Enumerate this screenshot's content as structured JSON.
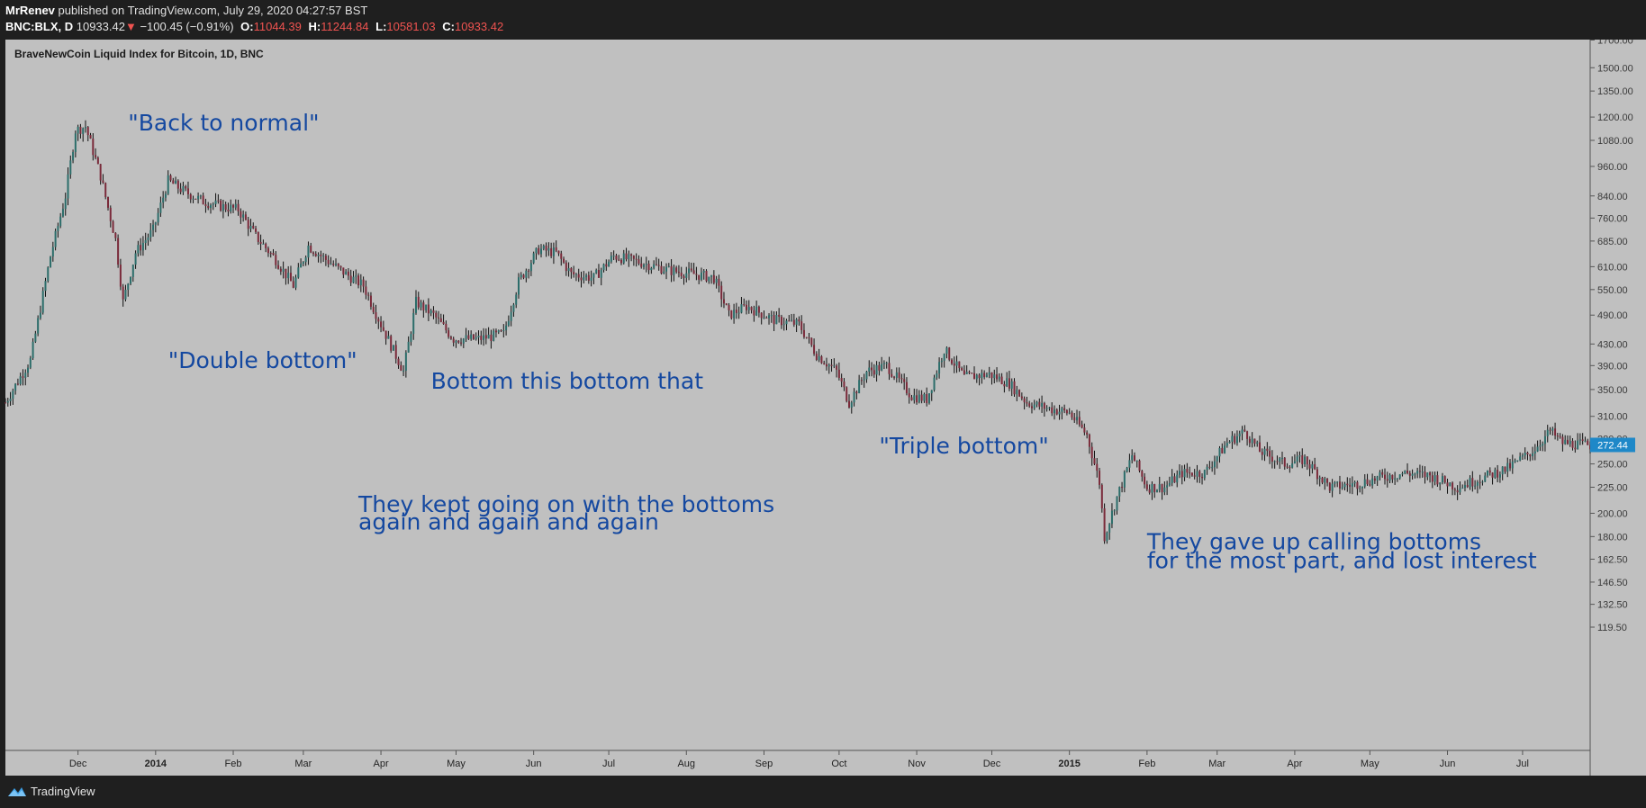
{
  "header": {
    "author": "MrRenev",
    "published": "published on TradingView.com, July 29, 2020 04:27:57 BST",
    "symbol": "BNC:BLX, D",
    "price": "10933.42",
    "change_arrow": "▼",
    "change": "−100.45 (−0.91%)",
    "o_label": "O:",
    "o_value": "11044.39",
    "h_label": "H:",
    "h_value": "11244.84",
    "l_label": "L:",
    "l_value": "10581.03",
    "c_label": "C:",
    "c_value": "10933.42"
  },
  "footer": {
    "brand": "TradingView"
  },
  "colors": {
    "plot_bg": "#c0c0c0",
    "annotation": "#1448a0",
    "price_tag": "#1e88c8",
    "candle_up": "#2b6d6a",
    "candle_down": "#7a2a3a",
    "wick": "#111111"
  },
  "chart_data": {
    "type": "candlestick",
    "title": "BraveNewCoin Liquid Index for Bitcoin, 1D, BNC",
    "scale": "log",
    "y_ticks": [
      119.5,
      132.5,
      146.5,
      162.5,
      180.0,
      200.0,
      225.0,
      250.0,
      280.0,
      310.0,
      350.0,
      390.0,
      430.0,
      490.0,
      550.0,
      610.0,
      685.0,
      760.0,
      840.0,
      960.0,
      1080.0,
      1200.0,
      1350.0,
      1500.0,
      1700.0
    ],
    "y_tick_labels": [
      "119.50",
      "132.50",
      "146.50",
      "162.50",
      "180.00",
      "200.00",
      "225.00",
      "250.00",
      "280.00",
      "310.00",
      "350.00",
      "390.00",
      "430.00",
      "490.00",
      "550.00",
      "610.00",
      "685.00",
      "760.00",
      "840.00",
      "960.00",
      "1080.00",
      "1200.00",
      "1350.00",
      "1500.00",
      "1700.00"
    ],
    "last_price": 272.44,
    "last_price_label": "272.44",
    "x_ticks": [
      {
        "label": "Dec",
        "date": "2013-12-01",
        "bold": false
      },
      {
        "label": "2014",
        "date": "2014-01-01",
        "bold": true
      },
      {
        "label": "Feb",
        "date": "2014-02-01",
        "bold": false
      },
      {
        "label": "Mar",
        "date": "2014-03-01",
        "bold": false
      },
      {
        "label": "Apr",
        "date": "2014-04-01",
        "bold": false
      },
      {
        "label": "May",
        "date": "2014-05-01",
        "bold": false
      },
      {
        "label": "Jun",
        "date": "2014-06-01",
        "bold": false
      },
      {
        "label": "Jul",
        "date": "2014-07-01",
        "bold": false
      },
      {
        "label": "Aug",
        "date": "2014-08-01",
        "bold": false
      },
      {
        "label": "Sep",
        "date": "2014-09-01",
        "bold": false
      },
      {
        "label": "Oct",
        "date": "2014-10-01",
        "bold": false
      },
      {
        "label": "Nov",
        "date": "2014-11-01",
        "bold": false
      },
      {
        "label": "Dec",
        "date": "2014-12-01",
        "bold": false
      },
      {
        "label": "2015",
        "date": "2015-01-01",
        "bold": true
      },
      {
        "label": "Feb",
        "date": "2015-02-01",
        "bold": false
      },
      {
        "label": "Mar",
        "date": "2015-03-01",
        "bold": false
      },
      {
        "label": "Apr",
        "date": "2015-04-01",
        "bold": false
      },
      {
        "label": "May",
        "date": "2015-05-01",
        "bold": false
      },
      {
        "label": "Jun",
        "date": "2015-06-01",
        "bold": false
      },
      {
        "label": "Jul",
        "date": "2015-07-01",
        "bold": false
      }
    ],
    "x_range": [
      "2013-11-02",
      "2015-07-28"
    ],
    "price_path": [
      [
        "2013-11-02",
        330
      ],
      [
        "2013-11-12",
        400
      ],
      [
        "2013-11-20",
        640
      ],
      [
        "2013-11-26",
        840
      ],
      [
        "2013-11-30",
        1130
      ],
      [
        "2013-12-04",
        1150
      ],
      [
        "2013-12-10",
        920
      ],
      [
        "2013-12-16",
        690
      ],
      [
        "2013-12-19",
        520
      ],
      [
        "2013-12-24",
        650
      ],
      [
        "2013-12-31",
        720
      ],
      [
        "2014-01-06",
        900
      ],
      [
        "2014-01-12",
        860
      ],
      [
        "2014-01-20",
        820
      ],
      [
        "2014-01-28",
        800
      ],
      [
        "2014-02-03",
        790
      ],
      [
        "2014-02-10",
        700
      ],
      [
        "2014-02-18",
        630
      ],
      [
        "2014-02-25",
        560
      ],
      [
        "2014-03-03",
        670
      ],
      [
        "2014-03-10",
        630
      ],
      [
        "2014-03-18",
        590
      ],
      [
        "2014-03-25",
        560
      ],
      [
        "2014-04-01",
        470
      ],
      [
        "2014-04-10",
        380
      ],
      [
        "2014-04-15",
        520
      ],
      [
        "2014-04-22",
        490
      ],
      [
        "2014-04-30",
        440
      ],
      [
        "2014-05-10",
        440
      ],
      [
        "2014-05-20",
        450
      ],
      [
        "2014-05-26",
        570
      ],
      [
        "2014-06-03",
        660
      ],
      [
        "2014-06-10",
        650
      ],
      [
        "2014-06-16",
        590
      ],
      [
        "2014-06-25",
        580
      ],
      [
        "2014-07-03",
        640
      ],
      [
        "2014-07-15",
        620
      ],
      [
        "2014-07-25",
        600
      ],
      [
        "2014-08-04",
        590
      ],
      [
        "2014-08-12",
        580
      ],
      [
        "2014-08-18",
        490
      ],
      [
        "2014-08-25",
        510
      ],
      [
        "2014-09-05",
        480
      ],
      [
        "2014-09-15",
        470
      ],
      [
        "2014-09-22",
        410
      ],
      [
        "2014-09-30",
        380
      ],
      [
        "2014-10-05",
        330
      ],
      [
        "2014-10-12",
        380
      ],
      [
        "2014-10-20",
        390
      ],
      [
        "2014-10-30",
        340
      ],
      [
        "2014-11-05",
        335
      ],
      [
        "2014-11-12",
        420
      ],
      [
        "2014-11-20",
        370
      ],
      [
        "2014-11-30",
        375
      ],
      [
        "2014-12-08",
        360
      ],
      [
        "2014-12-15",
        330
      ],
      [
        "2014-12-25",
        320
      ],
      [
        "2015-01-01",
        315
      ],
      [
        "2015-01-08",
        285
      ],
      [
        "2015-01-13",
        230
      ],
      [
        "2015-01-15",
        180
      ],
      [
        "2015-01-20",
        215
      ],
      [
        "2015-01-26",
        260
      ],
      [
        "2015-02-01",
        225
      ],
      [
        "2015-02-08",
        225
      ],
      [
        "2015-02-15",
        240
      ],
      [
        "2015-02-24",
        240
      ],
      [
        "2015-03-05",
        275
      ],
      [
        "2015-03-12",
        290
      ],
      [
        "2015-03-18",
        265
      ],
      [
        "2015-03-28",
        250
      ],
      [
        "2015-04-05",
        255
      ],
      [
        "2015-04-15",
        225
      ],
      [
        "2015-04-25",
        228
      ],
      [
        "2015-05-05",
        235
      ],
      [
        "2015-05-15",
        240
      ],
      [
        "2015-05-25",
        237
      ],
      [
        "2015-06-05",
        225
      ],
      [
        "2015-06-15",
        235
      ],
      [
        "2015-06-25",
        245
      ],
      [
        "2015-07-05",
        265
      ],
      [
        "2015-07-12",
        290
      ],
      [
        "2015-07-17",
        275
      ],
      [
        "2015-07-28",
        272
      ]
    ],
    "annotations": [
      {
        "text": "\"Back to normal\"",
        "date": "2013-12-21",
        "price": 1130,
        "size": 25
      },
      {
        "text": "\"Double bottom\"",
        "date": "2014-01-06",
        "price": 386,
        "size": 25
      },
      {
        "text": "Bottom this bottom that",
        "date": "2014-04-21",
        "price": 351,
        "size": 25
      },
      {
        "text": "\"Triple bottom\"",
        "date": "2014-10-17",
        "price": 262,
        "size": 25
      },
      {
        "text": "They kept going on with the bottoms",
        "date": "2014-03-23",
        "price": 201,
        "size": 25
      },
      {
        "text": "again and again and again",
        "date": "2014-03-23",
        "price": 186,
        "size": 25
      },
      {
        "text": "They gave up calling bottoms",
        "date": "2015-02-01",
        "price": 170,
        "size": 25
      },
      {
        "text": "for the most part, and lost interest",
        "date": "2015-02-01",
        "price": 156,
        "size": 25
      }
    ]
  }
}
